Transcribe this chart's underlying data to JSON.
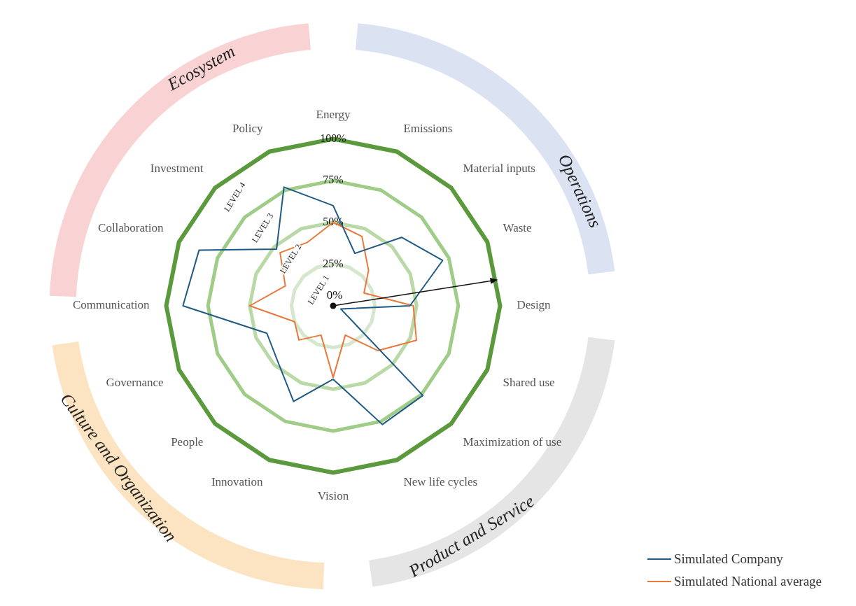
{
  "chart_data": {
    "type": "radar",
    "categories": [
      "Energy",
      "Emissions",
      "Material inputs",
      "Waste",
      "Design",
      "Shared use",
      "Maximization of use",
      "New life cycles",
      "Vision",
      "Innovation",
      "People",
      "Governance",
      "Communication",
      "Collaboration",
      "Investment",
      "Policy"
    ],
    "series": [
      {
        "name": "Simulated Company",
        "color": "#1f5a85",
        "values": [
          60,
          34,
          58,
          71,
          46,
          5,
          76,
          77,
          44,
          62,
          47,
          43,
          90,
          87,
          48,
          77
        ]
      },
      {
        "name": "Simulated National average",
        "color": "#e8793a",
        "values": [
          50,
          45,
          30,
          20,
          48,
          54,
          38,
          19,
          43,
          19,
          29,
          25,
          50,
          31,
          45,
          41
        ]
      }
    ],
    "ylim": [
      0,
      100
    ],
    "yticks": [
      {
        "value": 0,
        "label": "0%"
      },
      {
        "value": 25,
        "label": "25%"
      },
      {
        "value": 50,
        "label": "50%"
      },
      {
        "value": 75,
        "label": "75%"
      },
      {
        "value": 100,
        "label": "100%"
      }
    ],
    "grid": true,
    "marker": "none",
    "legend": "bottom right",
    "annotations": [
      "Ecosystem",
      "Operations",
      "Product and Service",
      "Culture and Organization",
      "LEVEL 1",
      "LEVEL 2",
      "LEVEL 3",
      "LEVEL 4"
    ]
  }
}
